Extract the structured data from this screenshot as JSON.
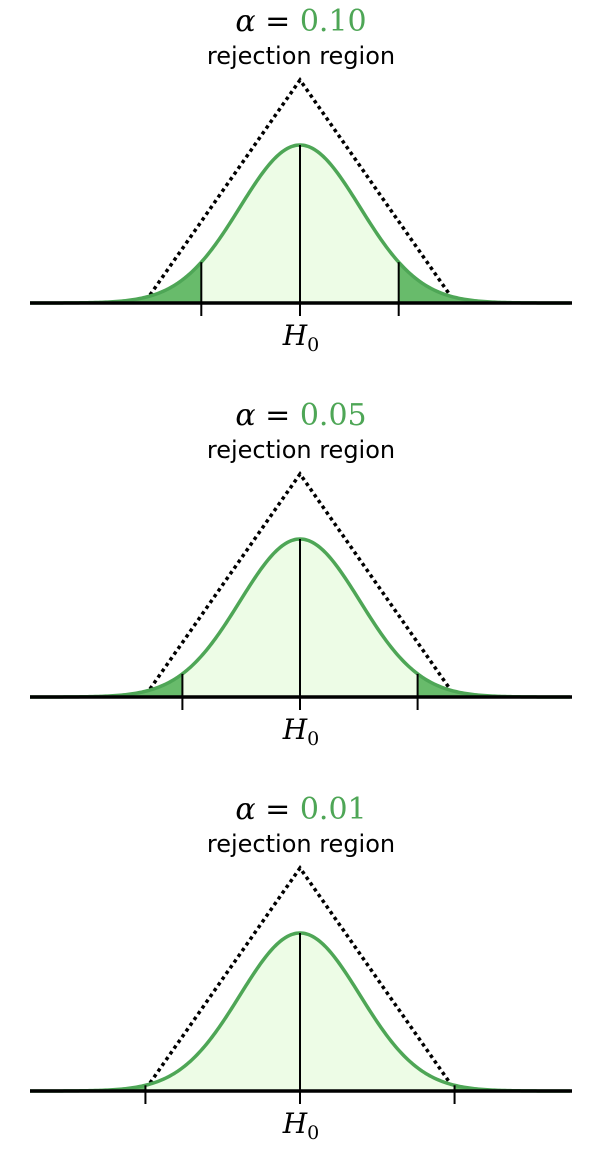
{
  "colors": {
    "curve": "#4ea656",
    "acceptance_fill": "#edfce6",
    "rejection_fill": "#68bb6b",
    "axis": "#000000",
    "envelope": "#000000"
  },
  "panels": [
    {
      "alpha_symbol": "α",
      "equals": "=",
      "alpha_value": "0.10",
      "subtitle": "rejection region",
      "h0_main": "H",
      "h0_sub": "0",
      "critical_z": 1.645
    },
    {
      "alpha_symbol": "α",
      "equals": "=",
      "alpha_value": "0.05",
      "subtitle": "rejection region",
      "h0_main": "H",
      "h0_sub": "0",
      "critical_z": 1.96
    },
    {
      "alpha_symbol": "α",
      "equals": "=",
      "alpha_value": "0.01",
      "subtitle": "rejection region",
      "h0_main": "H",
      "h0_sub": "0",
      "critical_z": 2.576
    }
  ]
}
